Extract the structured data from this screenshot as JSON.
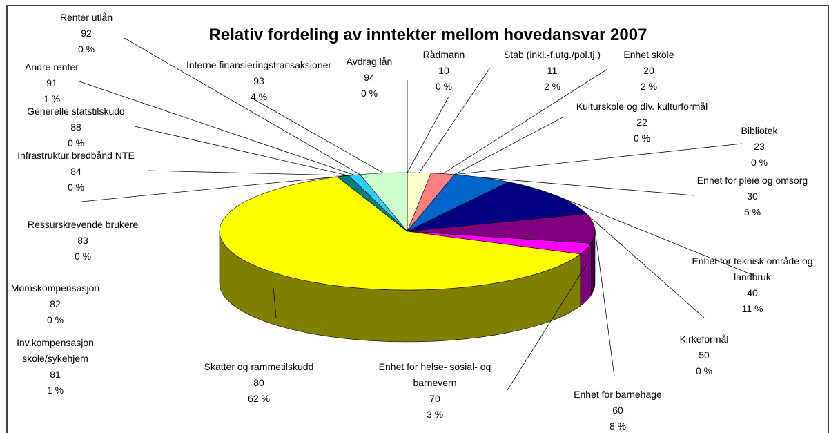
{
  "chart_data": {
    "type": "pie3d",
    "title": "Relativ fordeling av inntekter mellom hovedansvar 2007",
    "categories": [
      "Rådmann",
      "Stab (inkl.-f.utg./pol.tj.)",
      "Enhet skole",
      "Kulturskole og div. kulturformål",
      "Bibliotek",
      "Enhet for pleie og omsorg",
      "Enhet for teknisk område og landbruk",
      "Kirkeformål",
      "Enhet for barnehage",
      "Enhet for helse- sosial- og barnevern",
      "Skatter og rammetilskudd",
      "Inv.kompensasjon skole/sykehjem",
      "Momskompensasjon",
      "Ressurskrevende brukere",
      "Infrastruktur bredbånd NTE",
      "Generelle statstilskudd",
      "Andre renter",
      "Renter utlån",
      "Interne finansieringstransaksjoner",
      "Avdrag lån"
    ],
    "codes": [
      "10",
      "11",
      "20",
      "22",
      "23",
      "30",
      "40",
      "50",
      "60",
      "70",
      "80",
      "81",
      "82",
      "83",
      "84",
      "88",
      "91",
      "92",
      "93",
      "94"
    ],
    "values": [
      0,
      2,
      2,
      0,
      0,
      5,
      11,
      0,
      8,
      3,
      62,
      1,
      0,
      0,
      0,
      0,
      1,
      0,
      4,
      0
    ],
    "value_labels": [
      "0 %",
      "2 %",
      "2 %",
      "0 %",
      "0 %",
      "5 %",
      "11 %",
      "0 %",
      "8 %",
      "3 %",
      "62 %",
      "1 %",
      "0 %",
      "0 %",
      "0 %",
      "0 %",
      "1 %",
      "0 %",
      "4 %",
      "0 %"
    ],
    "colors": [
      "#993366",
      "#ffffcc",
      "#ff8080",
      "#ccccff",
      "#c0c0c0",
      "#0066cc",
      "#000080",
      "#ff00ff",
      "#800080",
      "#ff00ff",
      "#ffff00",
      "#008080",
      "#00ffff",
      "#3366ff",
      "#00ccff",
      "#0000ff",
      "#33ccff",
      "#0099ff",
      "#ccffcc",
      "#99ccff"
    ]
  }
}
